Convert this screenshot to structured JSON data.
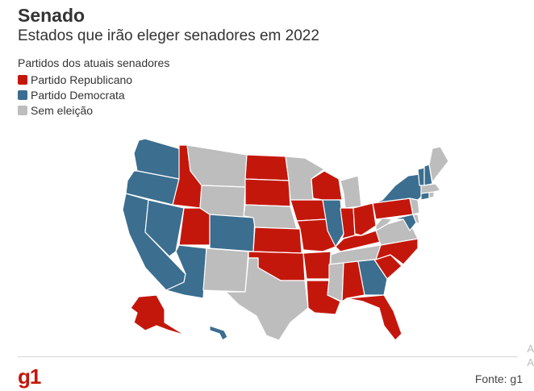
{
  "header": {
    "title": "Senado",
    "subtitle": "Estados que irão eleger senadores em 2022"
  },
  "legend": {
    "title": "Partidos dos atuais senadores",
    "items": [
      {
        "label": "Partido Republicano",
        "color": "#c4170c"
      },
      {
        "label": "Partido Democrata",
        "color": "#3b6e8f"
      },
      {
        "label": "Sem eleição",
        "color": "#bdbdbd"
      }
    ]
  },
  "colors": {
    "republican": "#c4170c",
    "democrat": "#3b6e8f",
    "none": "#bdbdbd"
  },
  "states": {
    "WA": "democrat",
    "OR": "democrat",
    "CA": "democrat",
    "NV": "democrat",
    "ID": "republican",
    "UT": "republican",
    "AZ": "democrat",
    "CO": "democrat",
    "MT": "none",
    "WY": "none",
    "NM": "none",
    "ND": "republican",
    "SD": "republican",
    "NE": "none",
    "KS": "republican",
    "OK": "republican",
    "TX": "none",
    "MN": "none",
    "IA": "republican",
    "MO": "republican",
    "AR": "republican",
    "LA": "republican",
    "WI": "republican",
    "IL": "democrat",
    "MI": "none",
    "IN": "republican",
    "OH": "republican",
    "KY": "republican",
    "TN": "none",
    "MS": "none",
    "AL": "republican",
    "GA": "democrat",
    "FL": "republican",
    "SC": "republican",
    "NC": "republican",
    "VA": "none",
    "WV": "none",
    "PA": "republican",
    "NY": "democrat",
    "MD": "democrat",
    "DE": "none",
    "NJ": "none",
    "CT": "democrat",
    "RI": "none",
    "MA": "none",
    "VT": "democrat",
    "NH": "democrat",
    "ME": "none",
    "AK": "republican",
    "HI": "democrat"
  },
  "footer": {
    "logo": "g1",
    "source": "Fonte: g1"
  },
  "watermark": {
    "line1": "A",
    "line2": "A"
  }
}
